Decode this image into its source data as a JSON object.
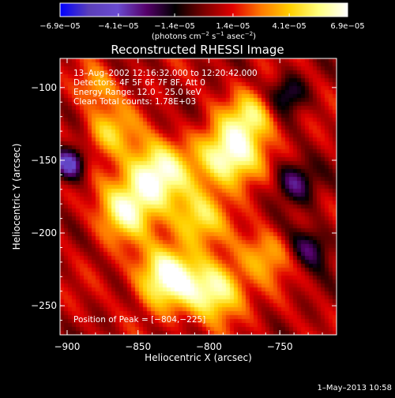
{
  "chart_data": {
    "type": "heatmap",
    "title": "Reconstructed RHESSI Image",
    "xlabel": "Heliocentric X (arcsec)",
    "ylabel": "Heliocentric Y (arcsec)",
    "xlim": [
      -905,
      -710
    ],
    "ylim": [
      -270,
      -80
    ],
    "x_ticks": [
      {
        "value": -900,
        "label": "−900"
      },
      {
        "value": -850,
        "label": "−850"
      },
      {
        "value": -800,
        "label": "−800"
      },
      {
        "value": -750,
        "label": "−750"
      }
    ],
    "y_ticks": [
      {
        "value": -100,
        "label": "−100"
      },
      {
        "value": -150,
        "label": "−150"
      },
      {
        "value": -200,
        "label": "−200"
      },
      {
        "value": -250,
        "label": "−250"
      }
    ],
    "colorbar": {
      "range": [
        -6.9e-05,
        6.9e-05
      ],
      "ticks": [
        {
          "value": -6.9e-05,
          "label": "−6.9e−05"
        },
        {
          "value": -4.1e-05,
          "label": "−4.1e−05"
        },
        {
          "value": -1.4e-05,
          "label": "−1.4e−05"
        },
        {
          "value": 1.4e-05,
          "label": "1.4e−05"
        },
        {
          "value": 4.1e-05,
          "label": "4.1e−05"
        },
        {
          "value": 6.9e-05,
          "label": "6.9e−05"
        }
      ],
      "unit_main": "(photons cm",
      "unit_sup1": "−2",
      "unit_mid": " s",
      "unit_sup2": "−1",
      "unit_mid2": " asec",
      "unit_sup3": "−2",
      "unit_end": ")",
      "colors": [
        "#0000ff",
        "#5b3fb8",
        "#6a4bd0",
        "#55006a",
        "#000000",
        "#7a0000",
        "#e00000",
        "#ff7a00",
        "#ffd000",
        "#ffff80",
        "#ffffff"
      ]
    },
    "annotations": {
      "time_range": "13–Aug–2002 12:16:32.000 to 12:20:42.000",
      "detectors": "Detectors: 4F 5F 6F 7F 8F, Att 0",
      "energy": "Energy Range: 12.0 – 25.0 keV",
      "method": "Clean     Total counts: 1.78E+03",
      "peak": "Position of Peak = [−804,−225]"
    },
    "peak": {
      "x": -804,
      "y": -225
    },
    "sources": [
      {
        "x": -838,
        "y": -160,
        "amp": 1.0,
        "sigma": 16
      },
      {
        "x": -785,
        "y": -147,
        "amp": 1.05,
        "sigma": 15
      },
      {
        "x": -860,
        "y": -185,
        "amp": 0.75,
        "sigma": 14
      },
      {
        "x": -830,
        "y": -230,
        "amp": 1.0,
        "sigma": 15
      },
      {
        "x": -795,
        "y": -240,
        "amp": 0.9,
        "sigma": 14
      },
      {
        "x": -808,
        "y": -190,
        "amp": 0.7,
        "sigma": 13
      },
      {
        "x": -770,
        "y": -120,
        "amp": 0.65,
        "sigma": 12
      },
      {
        "x": -870,
        "y": -130,
        "amp": 0.55,
        "sigma": 12
      },
      {
        "x": -880,
        "y": -100,
        "amp": 0.45,
        "sigma": 10
      },
      {
        "x": -760,
        "y": -215,
        "amp": 0.5,
        "sigma": 12
      },
      {
        "x": -898,
        "y": -152,
        "amp": -0.9,
        "sigma": 8
      },
      {
        "x": -740,
        "y": -165,
        "amp": -0.6,
        "sigma": 10
      },
      {
        "x": -728,
        "y": -210,
        "amp": -0.55,
        "sigma": 10
      },
      {
        "x": -745,
        "y": -105,
        "amp": -0.5,
        "sigma": 9
      }
    ]
  },
  "footer": {
    "timestamp": "1–May–2013 10:58"
  }
}
